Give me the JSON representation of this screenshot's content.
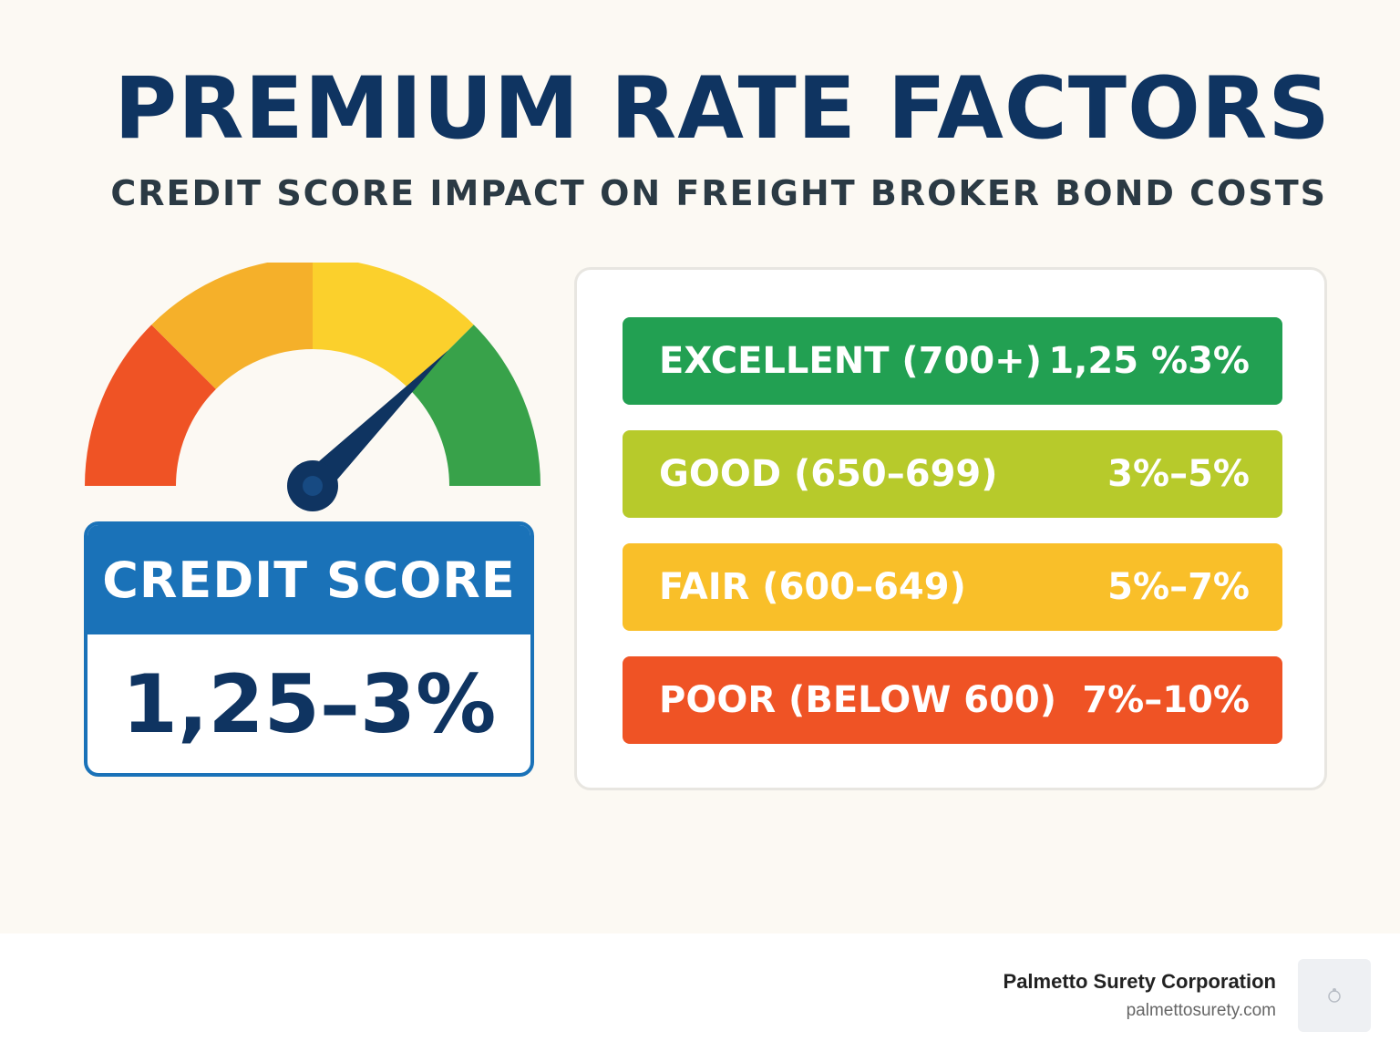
{
  "header": {
    "title": "PREMIUM RATE FACTORS",
    "subtitle": "CREDIT SCORE IMPACT ON FREIGHT BROKER BOND COSTS"
  },
  "gauge": {
    "segment_colors": [
      "#ef5325",
      "#f5b02a",
      "#fbd02c",
      "#38a24a"
    ],
    "needle_color": "#0f3461"
  },
  "score_card": {
    "label": "CREDIT SCORE",
    "value": "1,25–3%",
    "accent": "#1a72b8"
  },
  "tiers": [
    {
      "label": "EXCELLENT (700+)",
      "rate": "1,25 %3%",
      "color": "#22a052"
    },
    {
      "label": "GOOD (650–699)",
      "rate": "3%–5%",
      "color": "#b7ca2b"
    },
    {
      "label": "FAIR (600–649)",
      "rate": "5%–7%",
      "color": "#f9bf29"
    },
    {
      "label": "POOR (BELOW 600)",
      "rate": "7%–10%",
      "color": "#ef5325"
    }
  ],
  "footer": {
    "company": "Palmetto Surety Corporation",
    "website": "palmettosurety.com"
  }
}
